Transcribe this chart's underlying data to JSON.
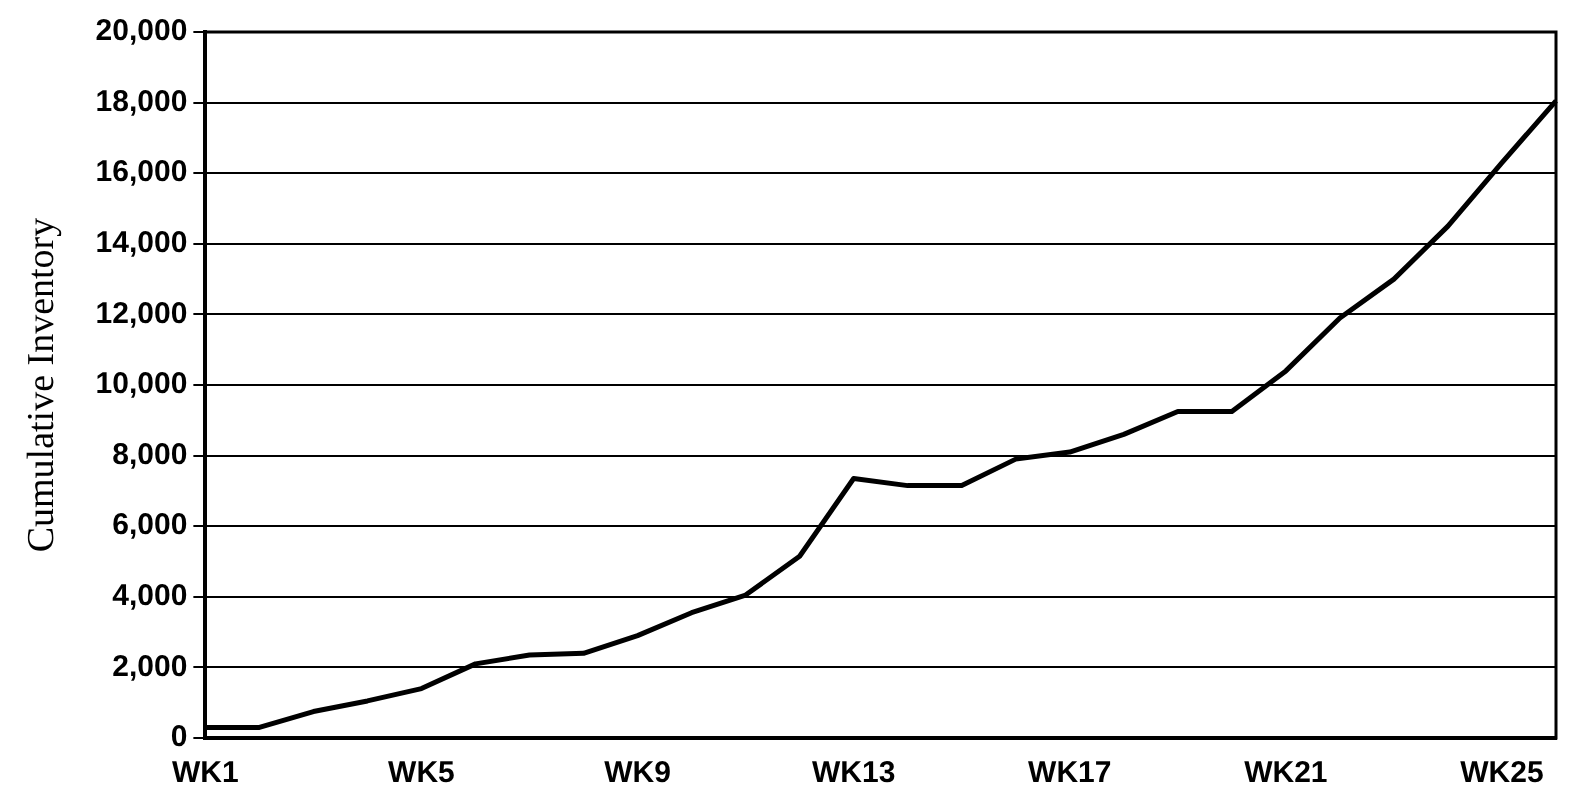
{
  "chart_data": {
    "type": "line",
    "ylabel": "Cumulative Inventory",
    "categories": [
      "WK1",
      null,
      null,
      null,
      "WK5",
      null,
      null,
      null,
      "WK9",
      null,
      null,
      null,
      "WK13",
      null,
      null,
      null,
      "WK17",
      null,
      null,
      null,
      "WK21",
      null,
      null,
      null,
      "WK25",
      null
    ],
    "series": [
      {
        "color": "#000000",
        "values": [
          300,
          300,
          750,
          1050,
          1400,
          2100,
          2350,
          2400,
          2900,
          3550,
          4050,
          5150,
          7350,
          7150,
          7150,
          7900,
          8100,
          8600,
          9250,
          9250,
          10400,
          11900,
          13000,
          14500,
          16300,
          18050
        ]
      }
    ],
    "ylim": [
      0,
      20000
    ],
    "yticks": [
      {
        "value": 0,
        "label": "0"
      },
      {
        "value": 2000,
        "label": "2,000"
      },
      {
        "value": 4000,
        "label": "4,000"
      },
      {
        "value": 6000,
        "label": "6,000"
      },
      {
        "value": 8000,
        "label": "8,000"
      },
      {
        "value": 10000,
        "label": "10,000"
      },
      {
        "value": 12000,
        "label": "12,000"
      },
      {
        "value": 14000,
        "label": "14,000"
      },
      {
        "value": 16000,
        "label": "16,000"
      },
      {
        "value": 18000,
        "label": "18,000"
      },
      {
        "value": 20000,
        "label": "20,000"
      }
    ],
    "grid": "y",
    "legend": false,
    "marker": "none",
    "line_style": "solid"
  }
}
